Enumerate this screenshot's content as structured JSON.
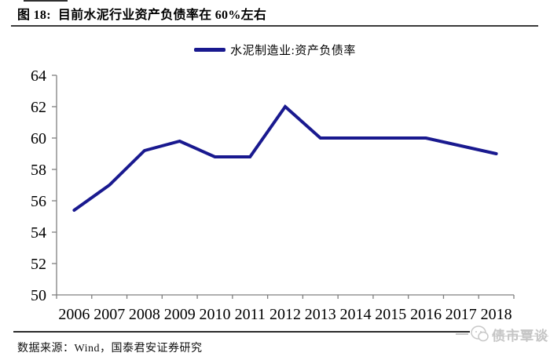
{
  "header": {
    "number_label": "图 18:",
    "title": "目前水泥行业资产负债率在 60%左右"
  },
  "legend": {
    "label": "水泥制造业:资产负债率"
  },
  "footer": {
    "source": "数据来源：Wind，国泰君安证券研究"
  },
  "watermark": {
    "text": "债市覃谈"
  },
  "chart_data": {
    "type": "line",
    "title": "目前水泥行业资产负债率在 60%左右",
    "categories": [
      "2006",
      "2007",
      "2008",
      "2009",
      "2010",
      "2011",
      "2012",
      "2013",
      "2014",
      "2015",
      "2016",
      "2017",
      "2018"
    ],
    "series": [
      {
        "name": "水泥制造业:资产负债率",
        "values": [
          55.4,
          57.0,
          59.2,
          59.8,
          58.8,
          58.8,
          62.0,
          60.0,
          60.0,
          60.0,
          60.0,
          59.5,
          59.0
        ]
      }
    ],
    "ylim": [
      50,
      64
    ],
    "ytick_step": 2,
    "grid": false,
    "legend_position": "top-center",
    "line_color": "#19198f",
    "axis_color": "#7f7f7f"
  }
}
